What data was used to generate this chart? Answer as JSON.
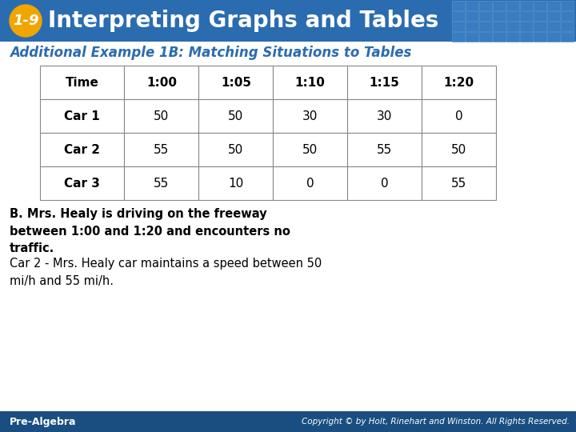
{
  "header_bg_color": "#2B6CB0",
  "header_text_color": "#FFFFFF",
  "badge_color": "#F0A500",
  "badge_text": "1-9",
  "header_title": "Interpreting Graphs and Tables",
  "subtitle": "Additional Example 1B: Matching Situations to Tables",
  "subtitle_color": "#2B6CB0",
  "table_headers": [
    "Time",
    "1:00",
    "1:05",
    "1:10",
    "1:15",
    "1:20"
  ],
  "table_rows": [
    [
      "Car 1",
      "50",
      "50",
      "30",
      "30",
      "0"
    ],
    [
      "Car 2",
      "55",
      "50",
      "50",
      "55",
      "50"
    ],
    [
      "Car 3",
      "55",
      "10",
      "0",
      "0",
      "55"
    ]
  ],
  "bold_text_b": "B. Mrs. Healy is driving on the freeway\nbetween 1:00 and 1:20 and encounters no\ntraffic.",
  "normal_text": "Car 2 - Mrs. Healy car maintains a speed between 50\nmi/h and 55 mi/h.",
  "footer_bg_color": "#1A4E80",
  "footer_left_text": "Pre-Algebra",
  "footer_right_text": "Copyright © by Holt, Rinehart and Winston. All Rights Reserved.",
  "bg_color": "#FFFFFF",
  "table_border_color": "#888888",
  "header_grid_cols": 9,
  "header_grid_rows": 4,
  "grid_bg_color": "#3A7CC0",
  "grid_line_color": "#5590CC"
}
